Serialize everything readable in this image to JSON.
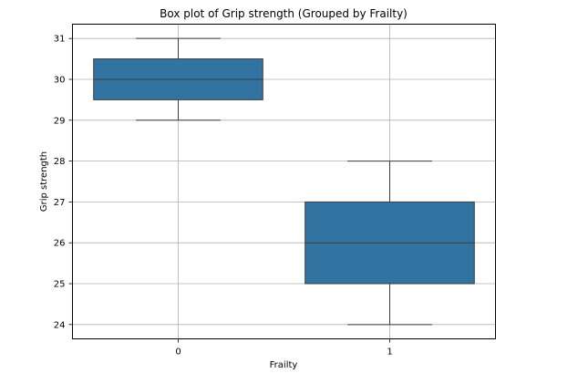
{
  "chart_data": {
    "type": "box",
    "title": "Box plot of Grip strength (Grouped by Frailty)",
    "xlabel": "Frailty",
    "ylabel": "Grip strength",
    "ylim": [
      23.65,
      31.35
    ],
    "yticks": [
      24,
      25,
      26,
      27,
      28,
      29,
      30,
      31
    ],
    "grid": true,
    "box_color": "#3274a1",
    "edge_color": "#3d3d3d",
    "categories": [
      "0",
      "1"
    ],
    "boxes": [
      {
        "category": "0",
        "whisker_low": 29,
        "q1": 29.5,
        "median": 30,
        "q3": 30.5,
        "whisker_high": 31
      },
      {
        "category": "1",
        "whisker_low": 24,
        "q1": 25,
        "median": 26,
        "q3": 27,
        "whisker_high": 28
      }
    ]
  }
}
